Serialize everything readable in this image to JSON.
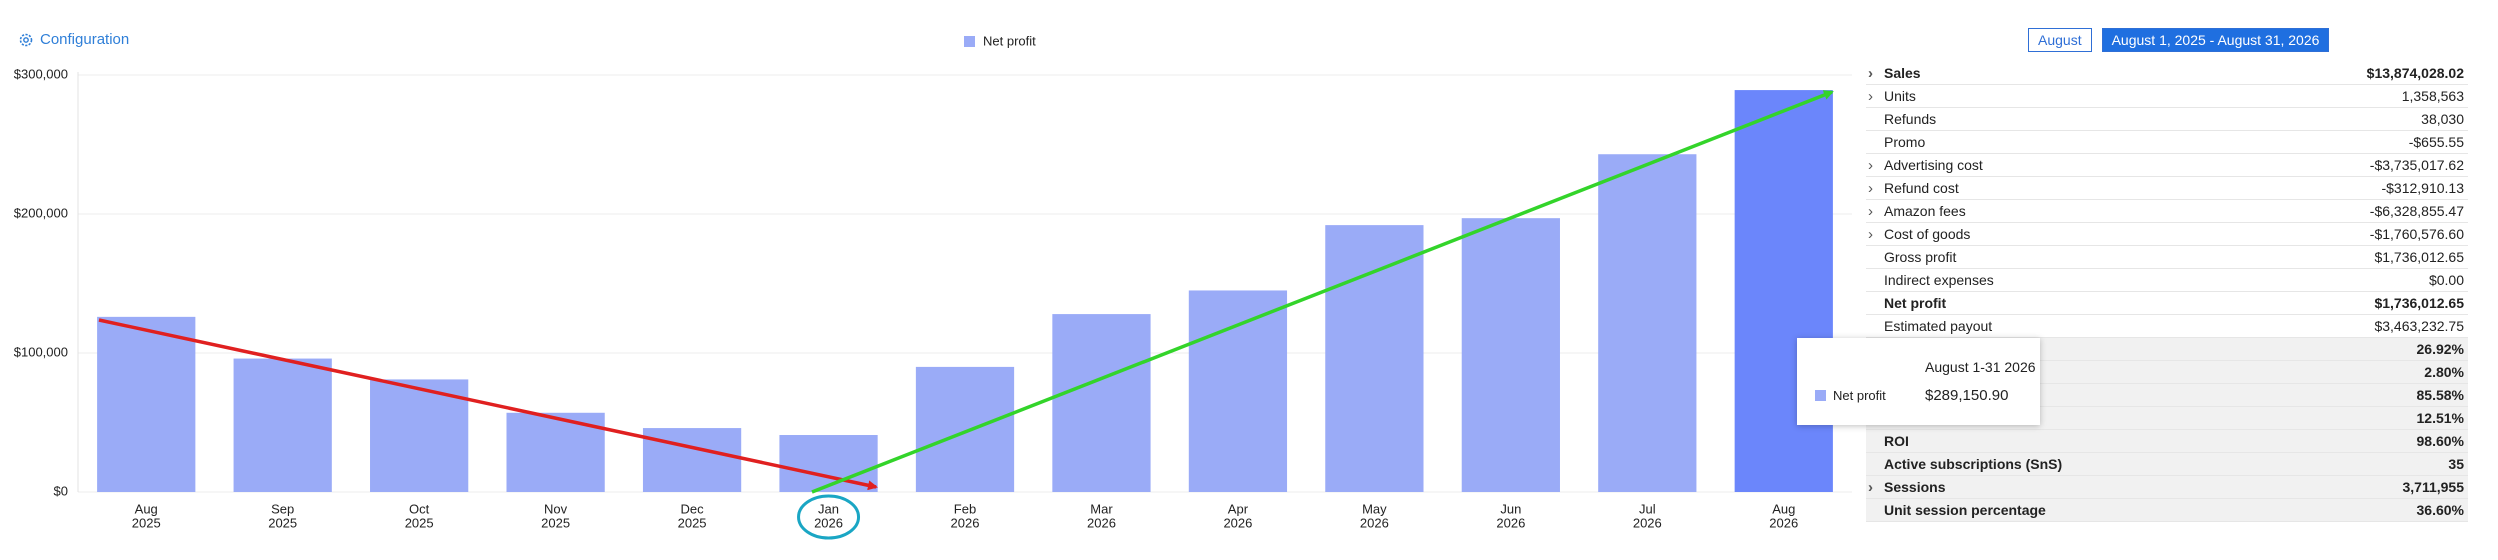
{
  "header": {
    "configuration": "Configuration",
    "period_button": "August",
    "range_button": "August 1, 2025 - August 31, 2026"
  },
  "chart_data": {
    "type": "bar",
    "categories": [
      [
        "Aug",
        "2025"
      ],
      [
        "Sep",
        "2025"
      ],
      [
        "Oct",
        "2025"
      ],
      [
        "Nov",
        "2025"
      ],
      [
        "Dec",
        "2025"
      ],
      [
        "Jan",
        "2026"
      ],
      [
        "Feb",
        "2026"
      ],
      [
        "Mar",
        "2026"
      ],
      [
        "Apr",
        "2026"
      ],
      [
        "May",
        "2026"
      ],
      [
        "Jun",
        "2026"
      ],
      [
        "Jul",
        "2026"
      ],
      [
        "Aug",
        "2026"
      ]
    ],
    "series": [
      {
        "name": "Net profit",
        "color": "#9aabf7",
        "colors": [
          "#9aabf7",
          "#9aabf7",
          "#9aabf7",
          "#9aabf7",
          "#9aabf7",
          "#9aabf7",
          "#9aabf7",
          "#9aabf7",
          "#9aabf7",
          "#9aabf7",
          "#9aabf7",
          "#9aabf7",
          "#6b86fb"
        ],
        "values": [
          126000,
          96000,
          81000,
          57000,
          46000,
          41000,
          90000,
          128000,
          145000,
          192000,
          197000,
          243000,
          289150.9
        ],
        "value_labels": [
          null,
          null,
          null,
          null,
          null,
          null,
          null,
          null,
          null,
          null,
          null,
          null,
          "$289,150.90"
        ]
      }
    ],
    "ylim": [
      0,
      300000
    ],
    "yticks": [
      {
        "value": 0,
        "label": "$0"
      },
      {
        "value": 100000,
        "label": "$100,000"
      },
      {
        "value": 200000,
        "label": "$200,000"
      },
      {
        "value": 300000,
        "label": "$300,000"
      }
    ],
    "grid": true,
    "tooltip": {
      "title": "August 1-31 2026"
    }
  },
  "summary": {
    "rows": [
      {
        "label": "Sales",
        "value": "$13,874,028.02",
        "bold": true,
        "expandable": true
      },
      {
        "label": "Units",
        "value": "1,358,563",
        "bold": false,
        "expandable": true
      },
      {
        "label": "Refunds",
        "value": "38,030",
        "bold": false,
        "expandable": false
      },
      {
        "label": "Promo",
        "value": "-$655.55",
        "bold": false,
        "expandable": false
      },
      {
        "label": "Advertising cost",
        "value": "-$3,735,017.62",
        "bold": false,
        "expandable": true
      },
      {
        "label": "Refund cost",
        "value": "-$312,910.13",
        "bold": false,
        "expandable": true
      },
      {
        "label": "Amazon fees",
        "value": "-$6,328,855.47",
        "bold": false,
        "expandable": true
      },
      {
        "label": "Cost of goods",
        "value": "-$1,760,576.60",
        "bold": false,
        "expandable": true
      },
      {
        "label": "Gross profit",
        "value": "$1,736,012.65",
        "bold": false,
        "expandable": false
      },
      {
        "label": "Indirect expenses",
        "value": "$0.00",
        "bold": false,
        "expandable": false
      },
      {
        "label": "Net profit",
        "value": "$1,736,012.65",
        "bold": true,
        "expandable": false
      },
      {
        "label": "Estimated payout",
        "value": "$3,463,232.75",
        "bold": false,
        "expandable": false
      },
      {
        "value": "26.92%",
        "bold": true,
        "expandable": false
      },
      {
        "value": "2.80%",
        "bold": true,
        "expandable": false
      },
      {
        "value": "85.58%",
        "bold": true,
        "expandable": false
      },
      {
        "value": "12.51%",
        "bold": true,
        "expandable": false
      },
      {
        "label": "ROI",
        "value": "98.60%",
        "bold": true,
        "expandable": false
      },
      {
        "label": "Active subscriptions (SnS)",
        "value": "35",
        "bold": true,
        "expandable": false
      },
      {
        "label": "Sessions",
        "value": "3,711,955",
        "bold": true,
        "expandable": true
      },
      {
        "label": "Unit session percentage",
        "value": "36.60%",
        "bold": true,
        "expandable": false
      }
    ]
  }
}
